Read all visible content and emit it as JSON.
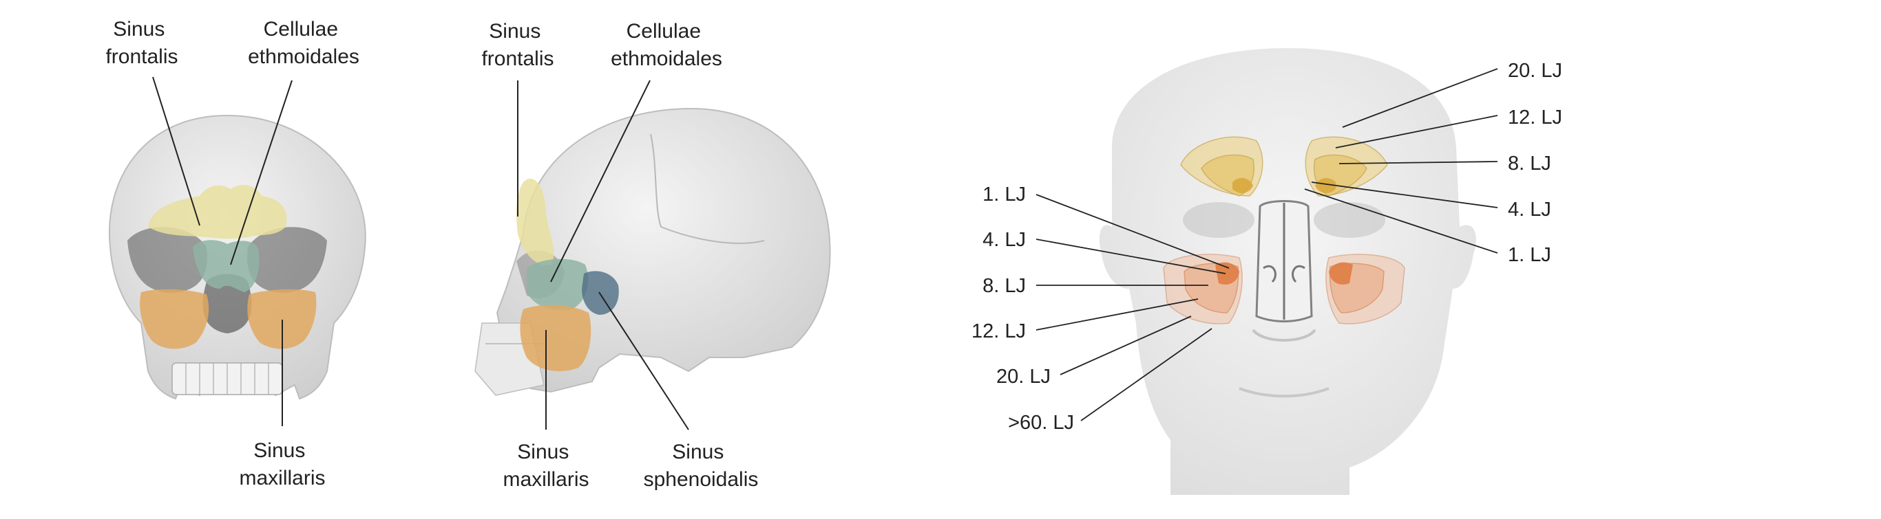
{
  "panel_front": {
    "sinus_frontalis": [
      "Sinus",
      "frontalis"
    ],
    "cellulae_ethmoidales": [
      "Cellulae",
      "ethmoidales"
    ],
    "sinus_maxillaris": [
      "Sinus",
      "maxillaris"
    ]
  },
  "panel_lateral": {
    "sinus_frontalis": [
      "Sinus",
      "frontalis"
    ],
    "cellulae_ethmoidales": [
      "Cellulae",
      "ethmoidales"
    ],
    "sinus_maxillaris": [
      "Sinus",
      "maxillaris"
    ],
    "sinus_sphenoidalis": [
      "Sinus",
      "sphenoidalis"
    ]
  },
  "panel_face": {
    "right_labels": [
      "20. LJ",
      "12. LJ",
      "8. LJ",
      "4. LJ",
      "1. LJ"
    ],
    "left_labels": [
      "1. LJ",
      "4. LJ",
      "8. LJ",
      "12. LJ",
      "20. LJ",
      ">60. LJ"
    ]
  },
  "colors": {
    "frontal": "#e8df9e",
    "ethmoid": "#8fb4a4",
    "maxillary": "#e1a860",
    "sphenoid": "#4f6f86",
    "bone": "#e6e6e6",
    "face": "#e9e9e9",
    "frontal_age_fill": "#e9c46a",
    "maxillary_age_fill": "#e9a27a"
  }
}
